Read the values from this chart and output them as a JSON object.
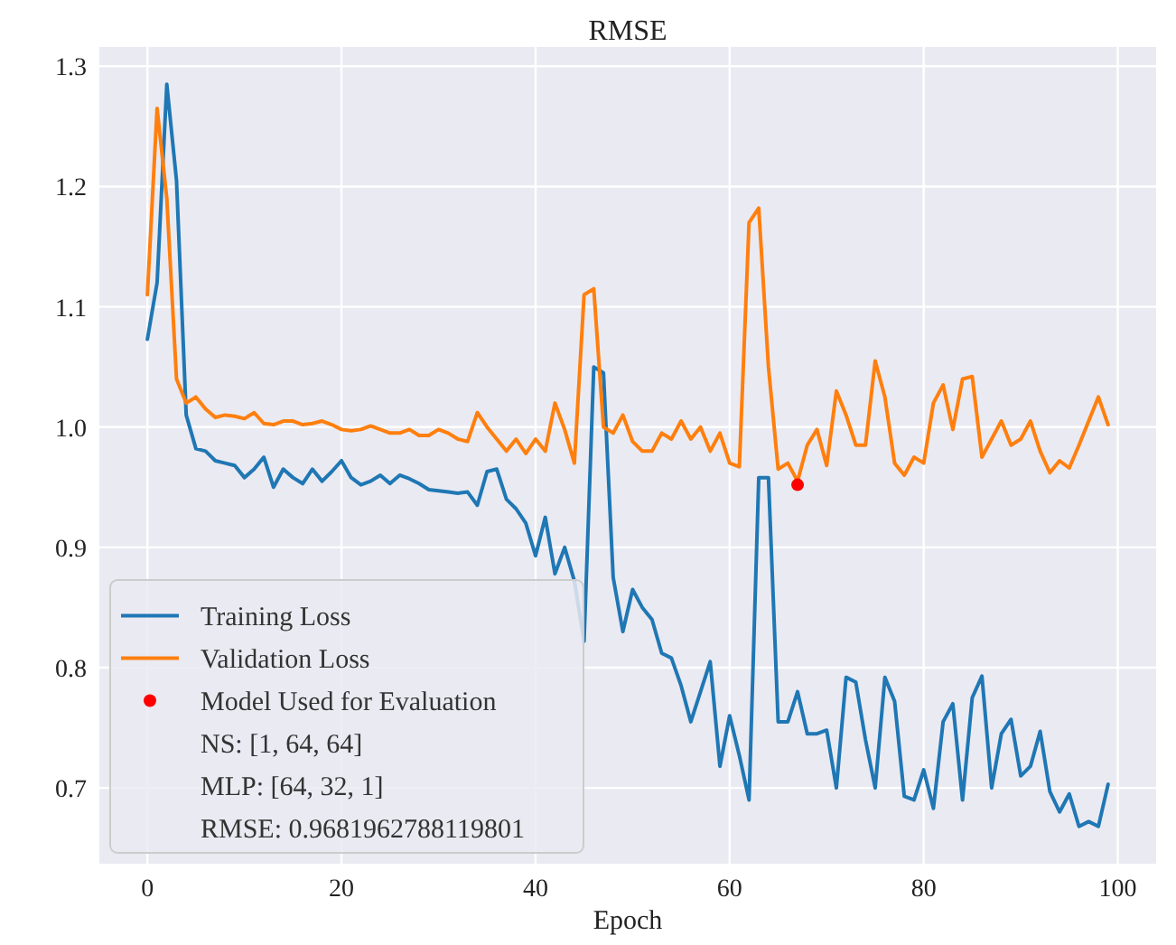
{
  "chart_data": {
    "type": "line",
    "title": "RMSE",
    "xlabel": "Epoch",
    "x": [
      0,
      1,
      2,
      3,
      4,
      5,
      6,
      7,
      8,
      9,
      10,
      11,
      12,
      13,
      14,
      15,
      16,
      17,
      18,
      19,
      20,
      21,
      22,
      23,
      24,
      25,
      26,
      27,
      28,
      29,
      30,
      31,
      32,
      33,
      34,
      35,
      36,
      37,
      38,
      39,
      40,
      41,
      42,
      43,
      44,
      45,
      46,
      47,
      48,
      49,
      50,
      51,
      52,
      53,
      54,
      55,
      56,
      57,
      58,
      59,
      60,
      61,
      62,
      63,
      64,
      65,
      66,
      67,
      68,
      69,
      70,
      71,
      72,
      73,
      74,
      75,
      76,
      77,
      78,
      79,
      80,
      81,
      82,
      83,
      84,
      85,
      86,
      87,
      88,
      89,
      90,
      91,
      92,
      93,
      94,
      95,
      96,
      97,
      98,
      99
    ],
    "series": [
      {
        "name": "Training Loss",
        "color": "#1f77b4",
        "values": [
          1.073,
          1.12,
          1.285,
          1.205,
          1.01,
          0.982,
          0.98,
          0.972,
          0.97,
          0.968,
          0.958,
          0.965,
          0.975,
          0.95,
          0.965,
          0.958,
          0.953,
          0.965,
          0.955,
          0.963,
          0.972,
          0.958,
          0.952,
          0.955,
          0.96,
          0.953,
          0.96,
          0.957,
          0.953,
          0.948,
          0.947,
          0.946,
          0.945,
          0.946,
          0.935,
          0.963,
          0.965,
          0.94,
          0.932,
          0.92,
          0.893,
          0.925,
          0.878,
          0.9,
          0.872,
          0.822,
          1.05,
          1.045,
          0.875,
          0.83,
          0.865,
          0.85,
          0.84,
          0.812,
          0.808,
          0.785,
          0.755,
          0.78,
          0.805,
          0.718,
          0.76,
          0.727,
          0.69,
          0.958,
          0.958,
          0.755,
          0.755,
          0.78,
          0.745,
          0.745,
          0.748,
          0.7,
          0.792,
          0.788,
          0.74,
          0.7,
          0.792,
          0.772,
          0.693,
          0.69,
          0.715,
          0.683,
          0.755,
          0.77,
          0.69,
          0.775,
          0.793,
          0.7,
          0.745,
          0.757,
          0.71,
          0.718,
          0.747,
          0.697,
          0.68,
          0.695,
          0.668,
          0.672,
          0.668,
          0.703
        ]
      },
      {
        "name": "Validation Loss",
        "color": "#ff7f0e",
        "values": [
          1.11,
          1.265,
          1.19,
          1.04,
          1.02,
          1.025,
          1.015,
          1.008,
          1.01,
          1.009,
          1.007,
          1.012,
          1.003,
          1.002,
          1.005,
          1.005,
          1.002,
          1.003,
          1.005,
          1.002,
          0.998,
          0.997,
          0.998,
          1.001,
          0.998,
          0.995,
          0.995,
          0.998,
          0.993,
          0.993,
          0.998,
          0.995,
          0.99,
          0.988,
          1.012,
          1.0,
          0.99,
          0.98,
          0.99,
          0.978,
          0.99,
          0.98,
          1.02,
          0.998,
          0.97,
          1.11,
          1.115,
          1.0,
          0.995,
          1.01,
          0.988,
          0.98,
          0.98,
          0.995,
          0.99,
          1.005,
          0.99,
          1.0,
          0.98,
          0.995,
          0.97,
          0.967,
          1.17,
          1.182,
          1.05,
          0.965,
          0.97,
          0.955,
          0.985,
          0.998,
          0.968,
          1.03,
          1.01,
          0.985,
          0.985,
          1.055,
          1.025,
          0.97,
          0.96,
          0.975,
          0.97,
          1.02,
          1.035,
          0.998,
          1.04,
          1.042,
          0.975,
          0.99,
          1.005,
          0.985,
          0.99,
          1.005,
          0.98,
          0.962,
          0.972,
          0.966,
          0.985,
          1.005,
          1.025,
          1.002
        ]
      },
      {
        "name": "Model Used for Evaluation",
        "type": "scatter",
        "color": "#ff0000",
        "x": [
          67
        ],
        "values": [
          0.952
        ]
      }
    ],
    "annotations": [
      "NS: [1, 64, 64]",
      "MLP: [64, 32, 1]",
      "RMSE: 0.9681962788119801"
    ],
    "xlim": [
      -4.95,
      103.95
    ],
    "xticks": [
      0,
      20,
      40,
      60,
      80,
      100
    ],
    "ylim": [
      0.637,
      1.316
    ],
    "yticks": [
      0.7,
      0.8,
      0.9,
      {
        "value": 1.0,
        "label": "1.0"
      },
      1.1,
      1.2,
      1.3
    ],
    "grid": true,
    "legend": "bottom left"
  }
}
